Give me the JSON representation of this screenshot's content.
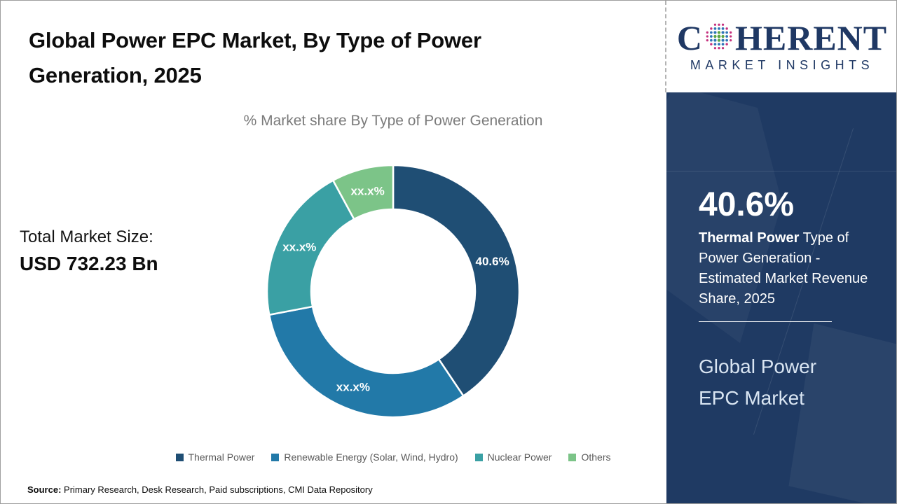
{
  "header": {
    "title": "Global Power EPC Market, By Type of Power Generation, 2025"
  },
  "main": {
    "total_market_label": "Total Market Size:",
    "total_market_value": "USD 732.23 Bn"
  },
  "chart_data": {
    "type": "pie",
    "subtype": "donut",
    "title": "% Market share By Type of Power Generation",
    "categories": [
      "Thermal Power",
      "Renewable Energy (Solar, Wind, Hydro)",
      "Nuclear Power",
      "Others"
    ],
    "values": [
      40.6,
      31.4,
      20.1,
      7.9
    ],
    "slice_labels": [
      "40.6%",
      "xx.x%",
      "xx.x%",
      "xx.x%"
    ],
    "colors": [
      "#1F4E74",
      "#2279A8",
      "#3AA0A4",
      "#7CC488"
    ],
    "start_angle_deg": 0,
    "direction": "clockwise",
    "legend_position": "bottom",
    "label_color": "#ffffff"
  },
  "sidebar": {
    "logo_c": "C",
    "logo_rest": "HERENT",
    "logo_sub": "MARKET INSIGHTS",
    "logo_color": "#1F3864",
    "panel_color": "#1F3A63",
    "stat_value": "40.6%",
    "stat_bold": "Thermal Power",
    "stat_rest": " Type of Power Generation - Estimated Market Revenue Share, 2025",
    "market_name": "Global Power EPC Market"
  },
  "footer": {
    "source_label": "Source:",
    "source_text": " Primary Research, Desk Research, Paid subscriptions, CMI Data Repository"
  }
}
